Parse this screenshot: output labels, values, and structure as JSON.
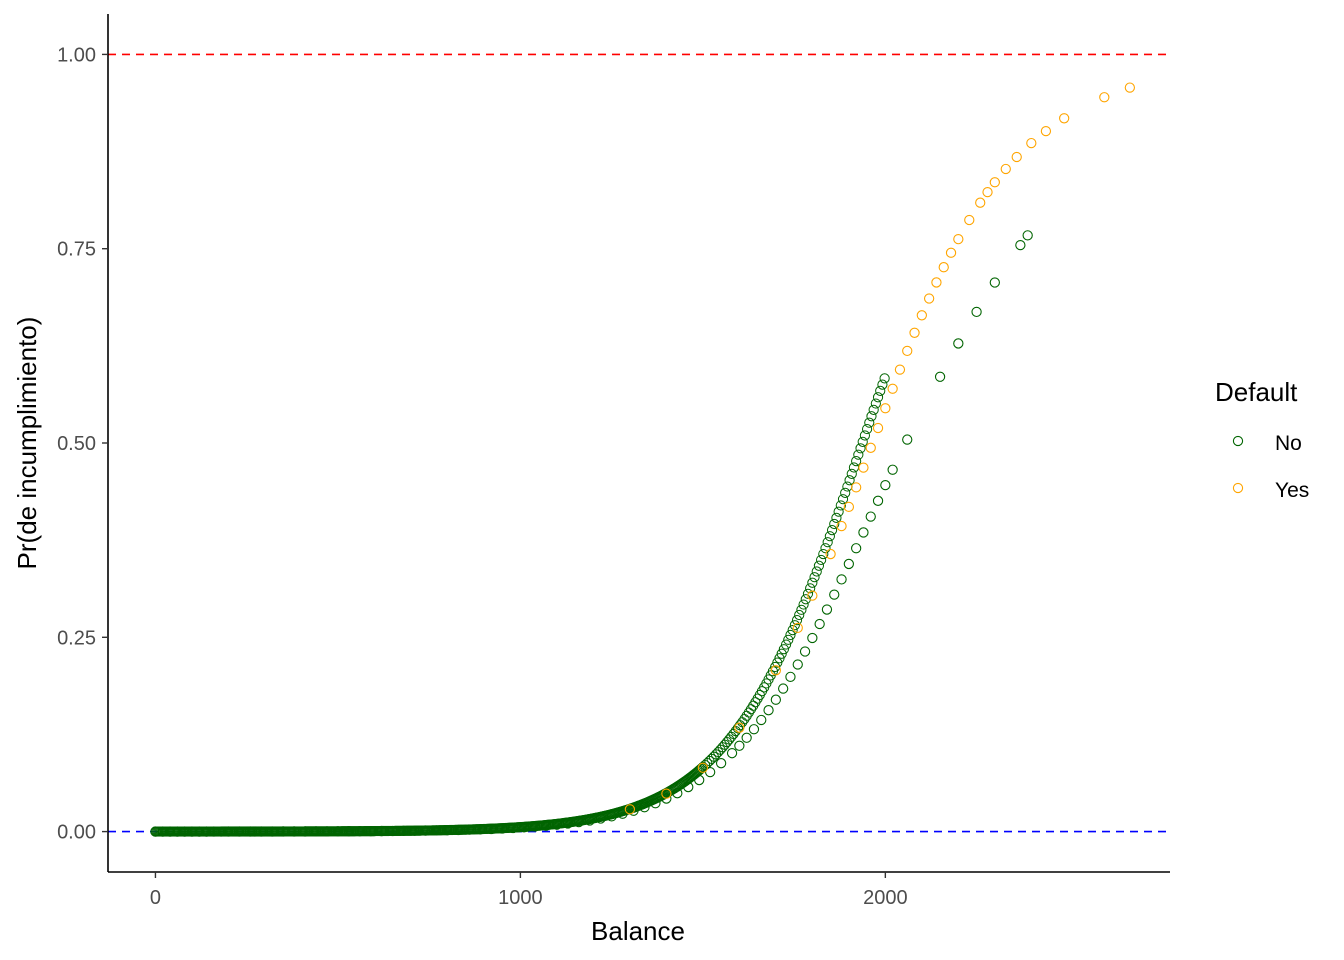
{
  "chart_data": {
    "type": "scatter",
    "title": "",
    "xlabel": "Balance",
    "ylabel": "Pr(de incumplimiento)",
    "xlim": [
      -130,
      2780
    ],
    "ylim": [
      -0.052,
      1.052
    ],
    "x_ticks": [
      0,
      1000,
      2000
    ],
    "x_tick_labels": [
      "0",
      "1000",
      "2000"
    ],
    "y_ticks": [
      0,
      0.25,
      0.5,
      0.75,
      1
    ],
    "y_tick_labels": [
      "0.00",
      "0.25",
      "0.50",
      "0.75",
      "1.00"
    ],
    "grid": false,
    "legend": {
      "title": "Default",
      "position": "right",
      "entries": [
        {
          "label": "No",
          "color": "#006400"
        },
        {
          "label": "Yes",
          "color": "#FFA500"
        }
      ]
    },
    "reference_lines": [
      {
        "y": 1.0,
        "color": "#FF0000",
        "style": "dashed"
      },
      {
        "y": 0.0,
        "color": "#0000FF",
        "style": "dashed"
      }
    ],
    "model": {
      "intercept": -10.6513,
      "slope": 0.005499
    },
    "series": [
      {
        "name": "No",
        "color": "#006400",
        "x": [
          0,
          20,
          40,
          60,
          80,
          100,
          120,
          140,
          160,
          180,
          200,
          230,
          260,
          290,
          320,
          350,
          380,
          410,
          440,
          470,
          500,
          530,
          560,
          590,
          620,
          650,
          680,
          710,
          740,
          770,
          800,
          830,
          860,
          890,
          920,
          950,
          980,
          1010,
          1040,
          1070,
          1100,
          1130,
          1160,
          1190,
          1220,
          1250,
          1280,
          1310,
          1340,
          1370,
          1400,
          1430,
          1460,
          1490,
          1520,
          1550,
          1580,
          1600,
          1620,
          1640,
          1660,
          1680,
          1700,
          1720,
          1740,
          1760,
          1780,
          1800,
          1820,
          1840,
          1860,
          1880,
          1900,
          1920,
          1940,
          1960,
          1980,
          2000,
          2020,
          2060,
          2150,
          2200,
          2250,
          2300,
          2370,
          2390
        ],
        "y": [
          0.0,
          0.0,
          0.0,
          0.0,
          0.0,
          0.0,
          0.0,
          0.0,
          0.0001,
          0.0001,
          0.0001,
          0.0001,
          0.0001,
          0.0001,
          0.0001,
          0.0002,
          0.0002,
          0.0002,
          0.0003,
          0.0003,
          0.0004,
          0.0005,
          0.0005,
          0.0006,
          0.0007,
          0.0008,
          0.001,
          0.0011,
          0.0013,
          0.0016,
          0.0018,
          0.0021,
          0.0025,
          0.0029,
          0.0034,
          0.004,
          0.0047,
          0.0055,
          0.0065,
          0.0076,
          0.0089,
          0.0104,
          0.0122,
          0.0143,
          0.0168,
          0.0196,
          0.023,
          0.0268,
          0.0313,
          0.0365,
          0.0425,
          0.0494,
          0.0573,
          0.0663,
          0.0765,
          0.088,
          0.1009,
          0.1104,
          0.1207,
          0.1317,
          0.1436,
          0.1562,
          0.1697,
          0.184,
          0.1991,
          0.215,
          0.2317,
          0.2491,
          0.2671,
          0.2857,
          0.3049,
          0.3245,
          0.3444,
          0.3646,
          0.3849,
          0.4053,
          0.4256,
          0.4458,
          0.4656,
          0.5044,
          0.5852,
          0.6281,
          0.6687,
          0.7065,
          0.7546,
          0.7672
        ]
      },
      {
        "name": "Yes",
        "color": "#FFA500",
        "x": [
          1300,
          1400,
          1500,
          1600,
          1700,
          1760,
          1800,
          1850,
          1880,
          1900,
          1920,
          1940,
          1960,
          1980,
          2000,
          2020,
          2040,
          2060,
          2080,
          2100,
          2120,
          2140,
          2160,
          2180,
          2200,
          2230,
          2260,
          2280,
          2300,
          2330,
          2360,
          2400,
          2440,
          2490,
          2600,
          2670
        ],
        "y": [
          0.0287,
          0.0488,
          0.0821,
          0.1337,
          0.2075,
          0.2621,
          0.3036,
          0.3571,
          0.3931,
          0.4178,
          0.4429,
          0.4683,
          0.4938,
          0.5193,
          0.5447,
          0.5698,
          0.5944,
          0.6185,
          0.6418,
          0.6643,
          0.6859,
          0.7066,
          0.7262,
          0.7448,
          0.7623,
          0.7869,
          0.8092,
          0.8228,
          0.8355,
          0.8526,
          0.868,
          0.8859,
          0.9013,
          0.9178,
          0.9449,
          0.9573
        ]
      }
    ]
  }
}
